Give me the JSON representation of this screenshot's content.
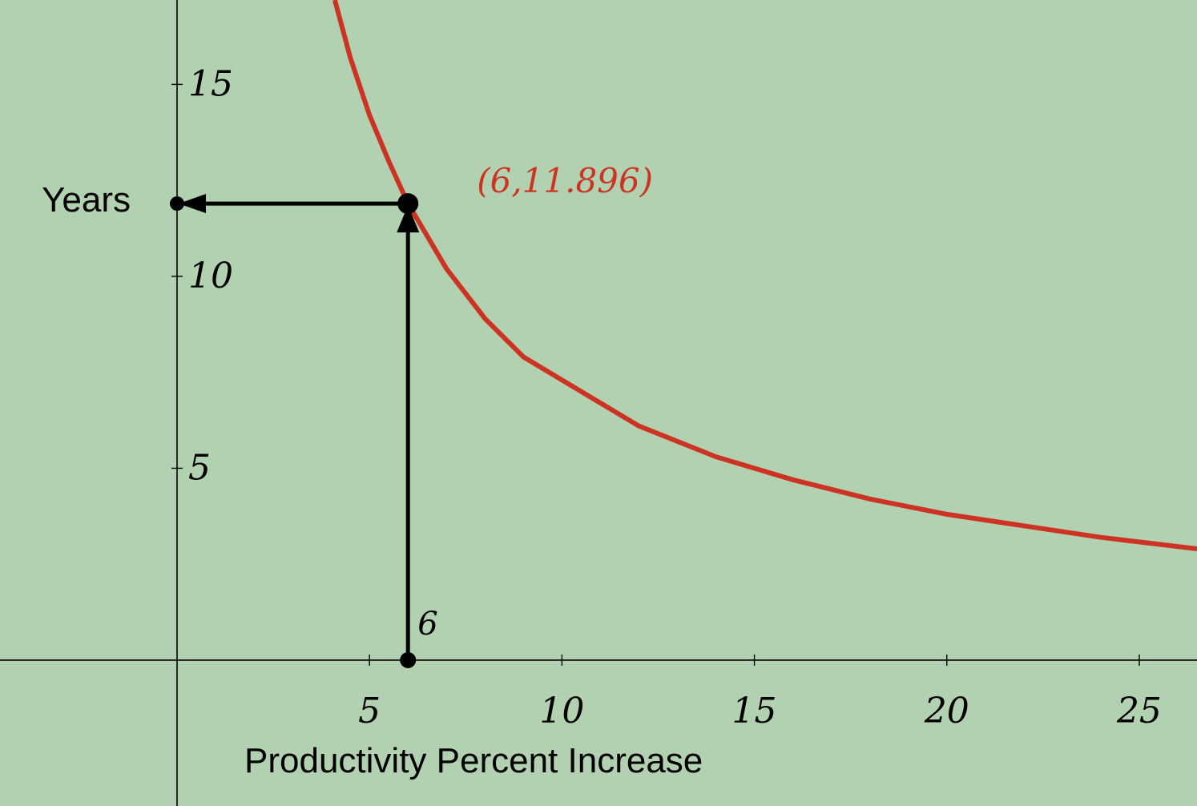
{
  "chart_data": {
    "type": "line",
    "xlabel": "Productivity Percent Increase",
    "ylabel": "Years",
    "xlim": [
      -4.6,
      26.5
    ],
    "ylim": [
      -3.8,
      17.2
    ],
    "x_ticks": [
      5,
      10,
      15,
      20,
      25
    ],
    "x_tick_labels": [
      "5",
      "10",
      "15",
      "20",
      "25"
    ],
    "y_ticks": [
      5,
      10,
      15
    ],
    "y_tick_labels": [
      "5",
      "10",
      "15"
    ],
    "grid": false,
    "series": [
      {
        "color": "#cc3322",
        "x": [
          4.1,
          4.5,
          5,
          5.5,
          6,
          7,
          8,
          9,
          10,
          12,
          14,
          16,
          18,
          20,
          22,
          24,
          26.5
        ],
        "y": [
          17.2,
          15.7,
          14.2,
          13.0,
          11.9,
          10.2,
          8.9,
          7.9,
          7.3,
          6.1,
          5.3,
          4.7,
          4.2,
          3.8,
          3.5,
          3.2,
          2.9
        ]
      }
    ],
    "highlight_point": {
      "x": 6,
      "y": 11.896,
      "label": "(6,11.896)"
    },
    "x_marker_label": "6"
  },
  "colors": {
    "background": "#b2d1b0",
    "curve": "#cc3322",
    "guide": "#000000"
  }
}
